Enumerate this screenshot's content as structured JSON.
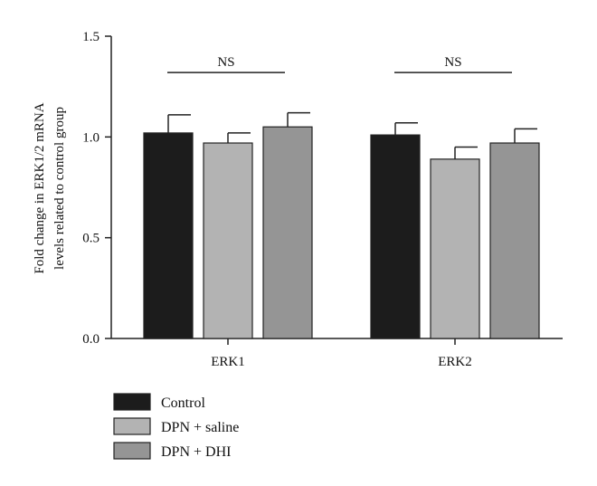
{
  "chart_data": {
    "type": "bar",
    "ylabel_lines": [
      "Fold change in ERK1/2 mRNA",
      "levels related to control group"
    ],
    "categories": [
      "ERK1",
      "ERK2"
    ],
    "ylim": [
      0,
      1.5
    ],
    "yticks": [
      "0.0",
      "0.5",
      "1.0",
      "1.5"
    ],
    "grid": false,
    "legend_position": "bottom-left",
    "series": [
      {
        "name": "Control",
        "color": "#1c1c1c",
        "values": [
          1.02,
          1.01
        ],
        "errors": [
          0.09,
          0.06
        ]
      },
      {
        "name": "DPN + saline",
        "color": "#b3b3b3",
        "values": [
          0.97,
          0.89
        ],
        "errors": [
          0.05,
          0.06
        ]
      },
      {
        "name": "DPN + DHI",
        "color": "#959595",
        "values": [
          1.05,
          0.97
        ],
        "errors": [
          0.07,
          0.07
        ]
      }
    ],
    "annotations": [
      {
        "category": "ERK1",
        "label": "NS",
        "y": 1.32
      },
      {
        "category": "ERK2",
        "label": "NS",
        "y": 1.32
      }
    ]
  }
}
